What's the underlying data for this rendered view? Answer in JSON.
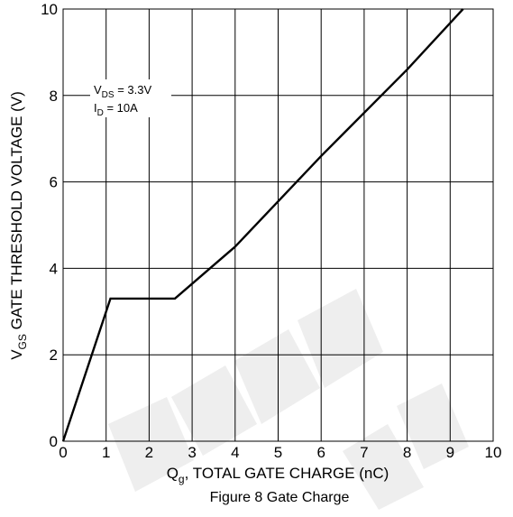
{
  "chart_data": {
    "type": "line",
    "caption": "Figure 8 Gate Charge",
    "xlabel": {
      "main": "Q",
      "sub": "g",
      "rest": ", TOTAL GATE CHARGE (nC)"
    },
    "ylabel": {
      "main": "V",
      "sub": "GS",
      "rest": " GATE THRESHOLD VOLTAGE (V)"
    },
    "xlim": [
      0,
      10
    ],
    "ylim": [
      0,
      10
    ],
    "grid": true,
    "x_ticks": [
      "0",
      "1",
      "2",
      "3",
      "4",
      "5",
      "6",
      "7",
      "8",
      "9",
      "10"
    ],
    "y_ticks": [
      "0",
      "2",
      "4",
      "6",
      "8",
      "10"
    ],
    "annotation": {
      "line1": {
        "main": "V",
        "sub": "DS",
        "rest": " = 3.3V"
      },
      "line2": {
        "main": "I",
        "sub": "D",
        "rest": " = 10A"
      }
    },
    "series": [
      {
        "x": [
          0,
          1.1,
          2.6,
          4.0,
          6.0,
          8.0,
          9.3
        ],
        "y": [
          0,
          3.3,
          3.3,
          4.5,
          6.6,
          8.6,
          10
        ]
      }
    ],
    "watermark": "NOT RECOMMENDED FOR NEW DESIGN",
    "colors": {
      "line": "#000000",
      "grid": "#000000",
      "watermark": "#eeeeee"
    }
  }
}
